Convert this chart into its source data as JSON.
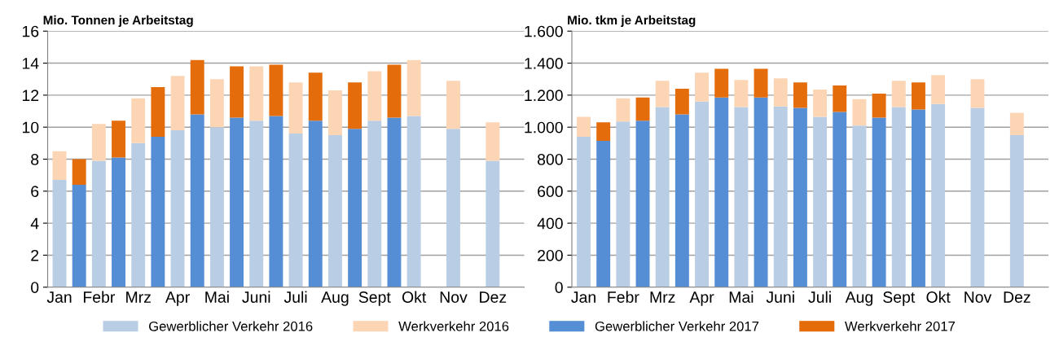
{
  "chart_data": [
    {
      "type": "bar",
      "title": "Mio. Tonnen je Arbeitstag",
      "stacked": true,
      "grid": "y",
      "legend": "bottom",
      "categories": [
        "Jan",
        null,
        "Febr",
        null,
        "Mrz",
        null,
        "Apr",
        null,
        "Mai",
        null,
        "Juni",
        null,
        "Juli",
        null,
        "Aug",
        null,
        "Sept",
        null,
        "Okt",
        null,
        "Nov",
        null,
        "Dez",
        null
      ],
      "ylim": [
        0,
        16
      ],
      "yticks": [
        0,
        2,
        4,
        6,
        8,
        10,
        12,
        14,
        16
      ],
      "series": [
        {
          "name": "Gewerblicher Verkehr 2016",
          "color": "#b9cde5",
          "values": [
            6.7,
            null,
            7.9,
            null,
            9.0,
            null,
            9.8,
            null,
            10.0,
            null,
            10.4,
            null,
            9.6,
            null,
            9.5,
            null,
            10.4,
            null,
            10.7,
            null,
            9.9,
            null,
            7.9,
            null
          ]
        },
        {
          "name": "Werkverkehr 2016",
          "color": "#fcd5b5",
          "values": [
            1.8,
            null,
            2.3,
            null,
            2.8,
            null,
            3.4,
            null,
            3.0,
            null,
            3.4,
            null,
            3.2,
            null,
            2.8,
            null,
            3.1,
            null,
            3.5,
            null,
            3.0,
            null,
            2.4,
            null
          ]
        },
        {
          "name": "Gewerblicher Verkehr 2017",
          "color": "#558ed5",
          "values": [
            null,
            6.4,
            null,
            8.1,
            null,
            9.4,
            null,
            10.8,
            null,
            10.6,
            null,
            10.7,
            null,
            10.4,
            null,
            9.9,
            null,
            10.6,
            null,
            null,
            null,
            null,
            null,
            null
          ]
        },
        {
          "name": "Werkverkehr 2017",
          "color": "#e46c0a",
          "values": [
            null,
            1.6,
            null,
            2.3,
            null,
            3.1,
            null,
            3.4,
            null,
            3.2,
            null,
            3.2,
            null,
            3.0,
            null,
            2.9,
            null,
            3.3,
            null,
            null,
            null,
            null,
            null,
            null
          ]
        }
      ]
    },
    {
      "type": "bar",
      "title": "Mio. tkm je Arbeitstag",
      "stacked": true,
      "grid": "y",
      "categories": [
        "Jan",
        null,
        "Febr",
        null,
        "Mrz",
        null,
        "Apr",
        null,
        "Mai",
        null,
        "Juni",
        null,
        "Juli",
        null,
        "Aug",
        null,
        "Sept",
        null,
        "Okt",
        null,
        "Nov",
        null,
        "Dez",
        null
      ],
      "ylim": [
        0,
        1600
      ],
      "yticks": [
        0,
        200,
        400,
        600,
        800,
        {
          "value": 1000,
          "label": "1.000"
        },
        {
          "value": 1200,
          "label": "1.200"
        },
        {
          "value": 1400,
          "label": "1.400"
        },
        {
          "value": 1600,
          "label": "1.600"
        }
      ],
      "series": [
        {
          "color": "#b9cde5",
          "values": [
            940,
            null,
            1035,
            null,
            1125,
            null,
            1160,
            null,
            1125,
            null,
            1130,
            null,
            1065,
            null,
            1010,
            null,
            1125,
            null,
            1145,
            null,
            1120,
            null,
            950,
            null
          ]
        },
        {
          "color": "#fcd5b5",
          "values": [
            125,
            null,
            145,
            null,
            165,
            null,
            180,
            null,
            170,
            null,
            175,
            null,
            170,
            null,
            165,
            null,
            165,
            null,
            180,
            null,
            180,
            null,
            140,
            null
          ]
        },
        {
          "color": "#558ed5",
          "values": [
            null,
            915,
            null,
            1040,
            null,
            1080,
            null,
            1185,
            null,
            1185,
            null,
            1120,
            null,
            1095,
            null,
            1060,
            null,
            1110,
            null,
            null,
            null,
            null,
            null,
            null
          ]
        },
        {
          "color": "#e46c0a",
          "values": [
            null,
            115,
            null,
            145,
            null,
            160,
            null,
            180,
            null,
            180,
            null,
            160,
            null,
            165,
            null,
            150,
            null,
            170,
            null,
            null,
            null,
            null,
            null,
            null
          ]
        }
      ]
    }
  ]
}
